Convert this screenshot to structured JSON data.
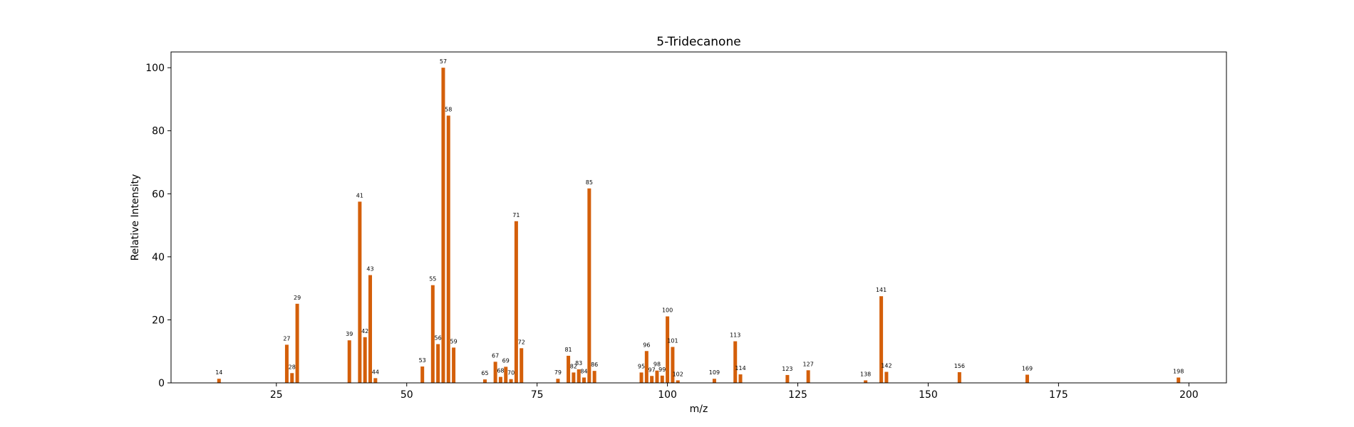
{
  "chart_data": {
    "type": "bar",
    "title": "5-Tridecanone",
    "xlabel": "m/z",
    "ylabel": "Relative Intensity",
    "xlim": [
      4.8,
      207.2
    ],
    "ylim": [
      0,
      105
    ],
    "xticks": [
      25,
      50,
      75,
      100,
      125,
      150,
      175,
      200
    ],
    "yticks": [
      0,
      20,
      40,
      60,
      80,
      100
    ],
    "grid": false,
    "bar_color": "#d45f0a",
    "series": [
      {
        "x": [
          14,
          27,
          28,
          29,
          39,
          41,
          42,
          43,
          44,
          53,
          55,
          56,
          57,
          58,
          59,
          65,
          67,
          68,
          69,
          70,
          71,
          72,
          79,
          81,
          82,
          83,
          84,
          85,
          86,
          95,
          96,
          97,
          98,
          99,
          100,
          101,
          102,
          109,
          113,
          114,
          123,
          127,
          138,
          141,
          142,
          156,
          169,
          198
        ],
        "values": [
          1.3,
          12.1,
          3.1,
          25.1,
          13.5,
          57.5,
          14.5,
          34.2,
          1.5,
          5.2,
          31,
          12.3,
          100,
          84.8,
          11.2,
          1.1,
          6.7,
          1.9,
          5.1,
          1.2,
          51.3,
          11,
          1.3,
          8.6,
          3.3,
          4.3,
          1.7,
          61.7,
          3.8,
          3.3,
          10.1,
          2.2,
          3.9,
          2.3,
          21.1,
          11.4,
          0.8,
          1.3,
          13.2,
          2.7,
          2.5,
          4,
          0.8,
          27.5,
          3.5,
          3.4,
          2.6,
          1.7
        ]
      }
    ]
  }
}
